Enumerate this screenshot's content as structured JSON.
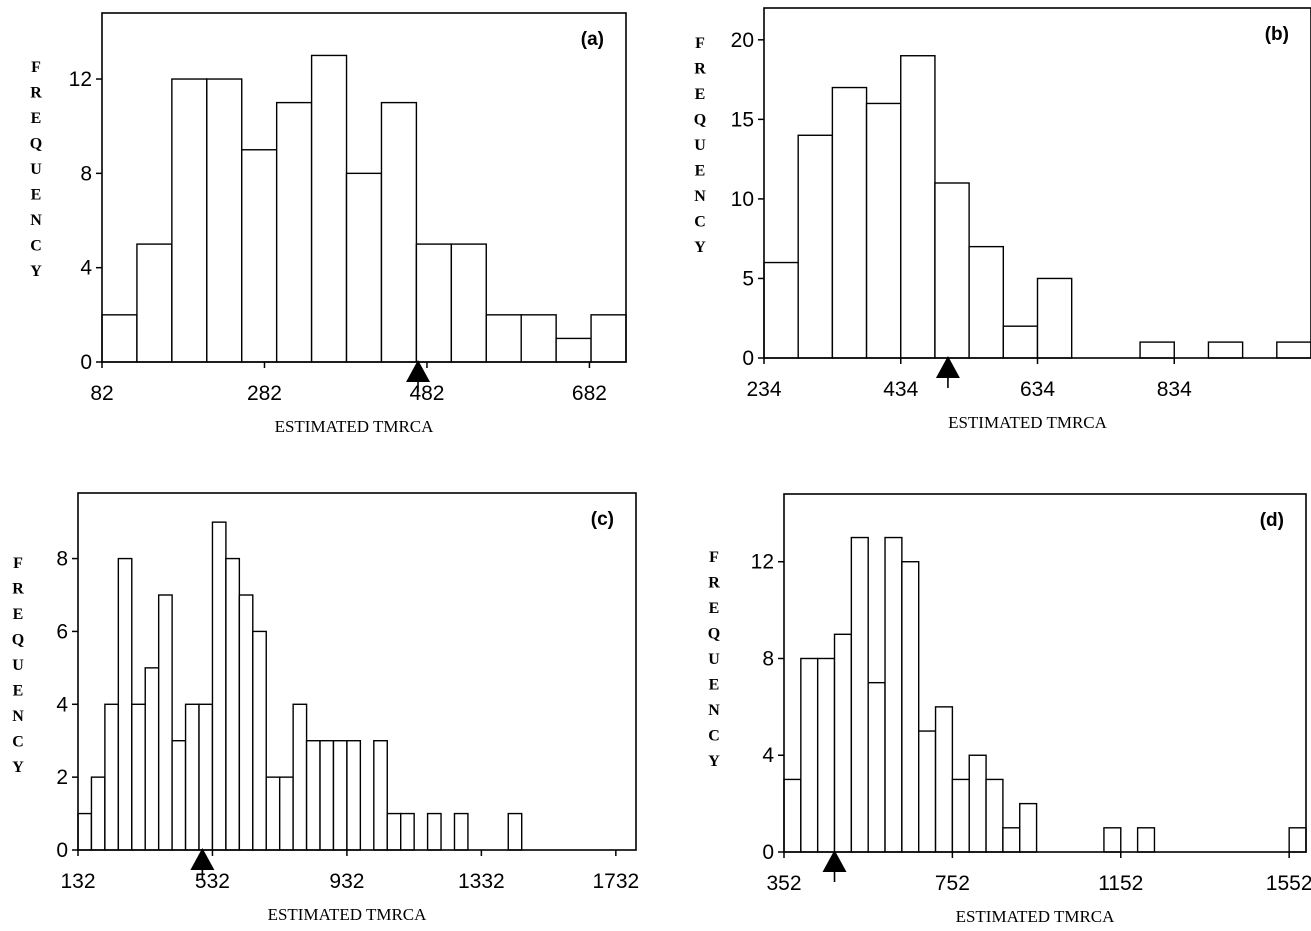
{
  "chart_data": [
    {
      "type": "bar",
      "panel_label": "(a)",
      "xlabel": "ESTIMATED TMRCA",
      "ylabel": "FREQUENCY",
      "bin_start": 82,
      "bin_width": 43,
      "counts": [
        2,
        5,
        12,
        12,
        9,
        11,
        13,
        8,
        11,
        5,
        5,
        2,
        2,
        1,
        2
      ],
      "xlim": [
        82,
        727
      ],
      "ylim": [
        0,
        14.8
      ],
      "xticks": [
        82,
        282,
        482,
        682
      ],
      "yticks": [
        0,
        4,
        8,
        12
      ],
      "marker": 471,
      "grid": false
    },
    {
      "type": "bar",
      "panel_label": "(b)",
      "xlabel": "ESTIMATED TMRCA",
      "ylabel": "FREQUENCY",
      "bin_start": 234,
      "bin_width": 50,
      "counts": [
        6,
        14,
        17,
        16,
        19,
        11,
        7,
        2,
        5,
        0,
        0,
        1,
        0,
        1,
        0,
        1
      ],
      "xlim": [
        234,
        1034
      ],
      "ylim": [
        0,
        22
      ],
      "xticks": [
        234,
        434,
        634,
        834
      ],
      "yticks": [
        0,
        5,
        10,
        15,
        20
      ],
      "marker": 503,
      "grid": false
    },
    {
      "type": "bar",
      "panel_label": "(c)",
      "xlabel": "ESTIMATED TMRCA",
      "ylabel": "FREQUENCY",
      "bin_start": 132,
      "bin_width": 40,
      "counts": [
        1,
        2,
        4,
        8,
        4,
        5,
        7,
        3,
        4,
        4,
        9,
        8,
        7,
        6,
        2,
        2,
        4,
        3,
        3,
        3,
        3,
        0,
        3,
        1,
        1,
        0,
        1,
        0,
        1,
        0,
        0,
        0,
        1
      ],
      "xlim": [
        132,
        1792
      ],
      "ylim": [
        0,
        9.8
      ],
      "xticks": [
        132,
        532,
        932,
        1332,
        1732
      ],
      "yticks": [
        0,
        2,
        4,
        6,
        8
      ],
      "marker": 502,
      "grid": false
    },
    {
      "type": "bar",
      "panel_label": "(d)",
      "xlabel": "ESTIMATED TMRCA",
      "ylabel": "FREQUENCY",
      "bin_start": 352,
      "bin_width": 40,
      "counts": [
        3,
        8,
        8,
        9,
        13,
        7,
        13,
        12,
        5,
        6,
        3,
        4,
        3,
        1,
        2,
        0,
        0,
        0,
        0,
        1,
        0,
        1,
        0,
        0,
        0,
        0,
        0,
        0,
        0,
        0,
        1
      ],
      "xlim": [
        352,
        1592
      ],
      "ylim": [
        0,
        14.8
      ],
      "xticks": [
        352,
        752,
        1152,
        1552
      ],
      "yticks": [
        0,
        4,
        8,
        12
      ],
      "marker": 472,
      "grid": false
    }
  ]
}
